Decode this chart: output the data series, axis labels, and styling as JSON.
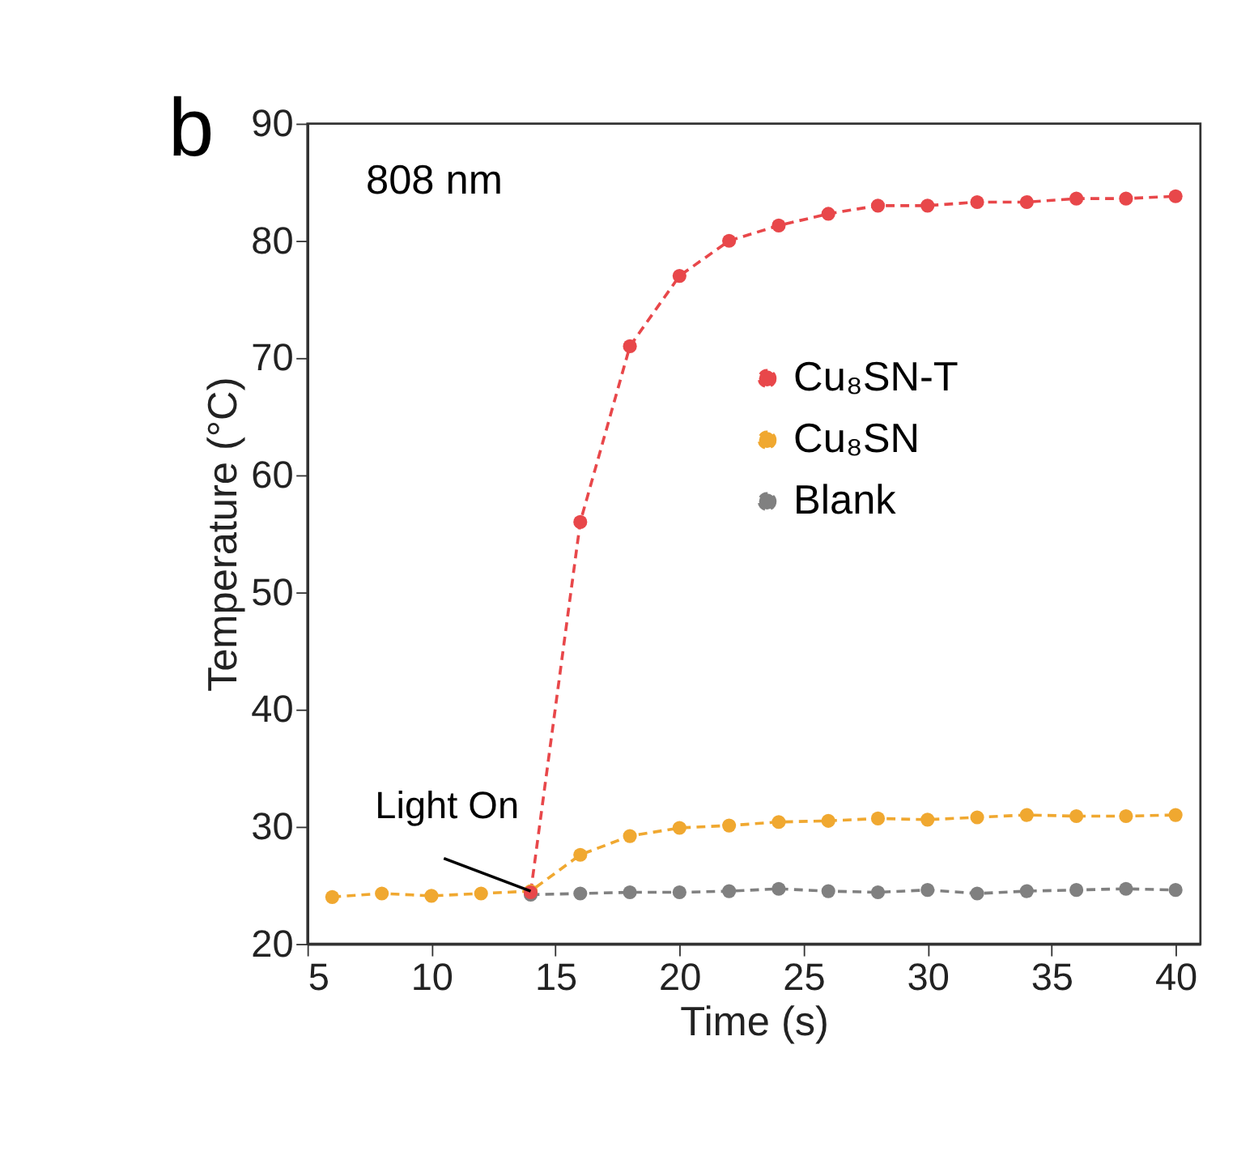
{
  "chart_data": {
    "type": "line",
    "title": "b",
    "xlabel": "Time (s)",
    "ylabel": "Temperature (°C)",
    "x": [
      6,
      8,
      10,
      12,
      14,
      16,
      18,
      20,
      22,
      24,
      26,
      28,
      30,
      32,
      34,
      36,
      38,
      40
    ],
    "series": [
      {
        "name": "Cu₈SN-T",
        "color": "#e8474a",
        "values": [
          null,
          null,
          null,
          null,
          24.4,
          56.0,
          71.0,
          77.0,
          80.0,
          81.3,
          82.3,
          83.0,
          83.0,
          83.3,
          83.3,
          83.6,
          83.6,
          83.8
        ]
      },
      {
        "name": "Cu₈SN",
        "color": "#f0a830",
        "values": [
          24.0,
          24.3,
          24.1,
          24.3,
          24.5,
          27.6,
          29.2,
          29.9,
          30.1,
          30.4,
          30.5,
          30.7,
          30.6,
          30.8,
          31.0,
          30.9,
          30.9,
          31.0
        ]
      },
      {
        "name": "Blank",
        "color": "#808080",
        "values": [
          null,
          null,
          null,
          null,
          24.2,
          24.3,
          24.4,
          24.4,
          24.5,
          24.7,
          24.5,
          24.4,
          24.6,
          24.3,
          24.5,
          24.6,
          24.7,
          24.6
        ]
      }
    ],
    "xlim": [
      5,
      41
    ],
    "xticks": [
      5,
      10,
      15,
      20,
      25,
      30,
      35,
      40
    ],
    "ylim": [
      20,
      90
    ],
    "yticks": [
      20,
      30,
      40,
      50,
      60,
      70,
      80,
      90
    ],
    "grid": false,
    "legend": "right",
    "marker": "circle",
    "line_style": "dashed",
    "annotations": [
      "808 nm",
      {
        "text": "Light On",
        "x": 14,
        "y": 24.5
      }
    ]
  }
}
